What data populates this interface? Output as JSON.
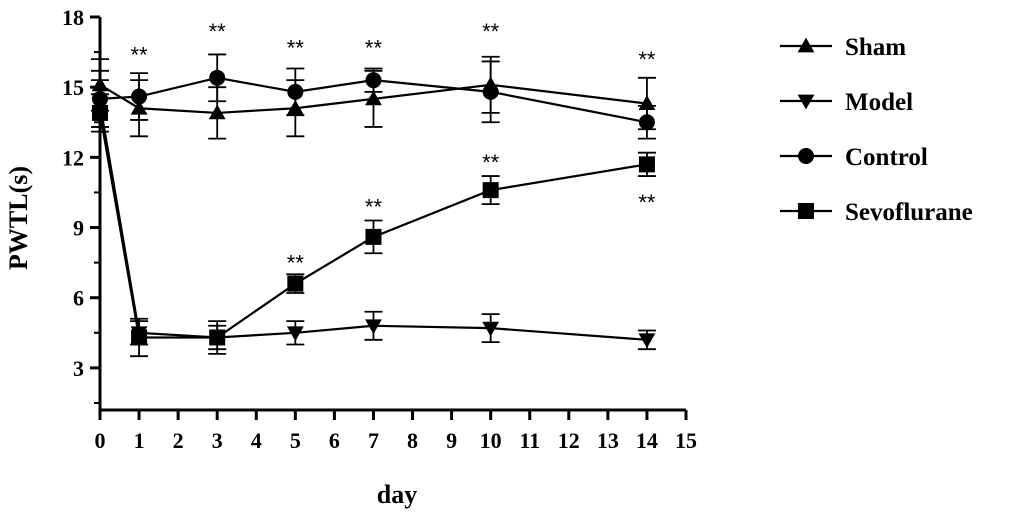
{
  "chart_data": {
    "type": "line",
    "xlabel": "day",
    "ylabel": "PWTL(s)",
    "xlim": [
      0,
      15
    ],
    "ylim": [
      1.2,
      18
    ],
    "xticks": [
      0,
      1,
      2,
      3,
      4,
      5,
      6,
      7,
      8,
      9,
      10,
      11,
      12,
      13,
      14,
      15
    ],
    "yticks": [
      3,
      6,
      9,
      12,
      15,
      18
    ],
    "grid": false,
    "legend_position": "right",
    "series": [
      {
        "name": "Sham",
        "marker": "triangle-up",
        "color": "#000000",
        "x": [
          0,
          1,
          3,
          5,
          7,
          10,
          14
        ],
        "y": [
          15.1,
          14.1,
          13.9,
          14.1,
          14.5,
          15.1,
          14.3
        ],
        "err": [
          1.1,
          1.2,
          1.1,
          1.2,
          1.2,
          1.2,
          1.1
        ]
      },
      {
        "name": "Model",
        "marker": "triangle-down",
        "color": "#000000",
        "x": [
          0,
          1,
          3,
          5,
          7,
          10,
          14
        ],
        "y": [
          14.3,
          4.5,
          4.3,
          4.5,
          4.8,
          4.7,
          4.2
        ],
        "err": [
          1.0,
          0.5,
          0.5,
          0.5,
          0.6,
          0.6,
          0.4
        ]
      },
      {
        "name": "Control",
        "marker": "circle",
        "color": "#000000",
        "x": [
          0,
          1,
          3,
          5,
          7,
          10,
          14
        ],
        "y": [
          14.5,
          14.6,
          15.4,
          14.8,
          15.3,
          14.8,
          13.5
        ],
        "err": [
          1.2,
          1.0,
          1.0,
          1.0,
          0.5,
          1.3,
          0.7
        ]
      },
      {
        "name": "Sevoflurane",
        "marker": "square",
        "color": "#000000",
        "x": [
          0,
          1,
          3,
          5,
          7,
          10,
          14
        ],
        "y": [
          13.9,
          4.3,
          4.3,
          6.6,
          8.6,
          10.6,
          11.7
        ],
        "err": [
          0.8,
          0.8,
          0.7,
          0.4,
          0.7,
          0.6,
          0.5
        ]
      }
    ],
    "annotations": [
      {
        "text": "**",
        "x": 1,
        "y": 16.4
      },
      {
        "text": "**",
        "x": 3,
        "y": 17.4
      },
      {
        "text": "**",
        "x": 5,
        "y": 16.7
      },
      {
        "text": "**",
        "x": 7,
        "y": 16.7
      },
      {
        "text": "**",
        "x": 10,
        "y": 17.4
      },
      {
        "text": "**",
        "x": 14,
        "y": 16.2
      },
      {
        "text": "**",
        "x": 5,
        "y": 7.5
      },
      {
        "text": "**",
        "x": 7,
        "y": 9.9
      },
      {
        "text": "**",
        "x": 10,
        "y": 11.8
      },
      {
        "text": "**",
        "x": 14,
        "y": 10.1
      }
    ]
  }
}
